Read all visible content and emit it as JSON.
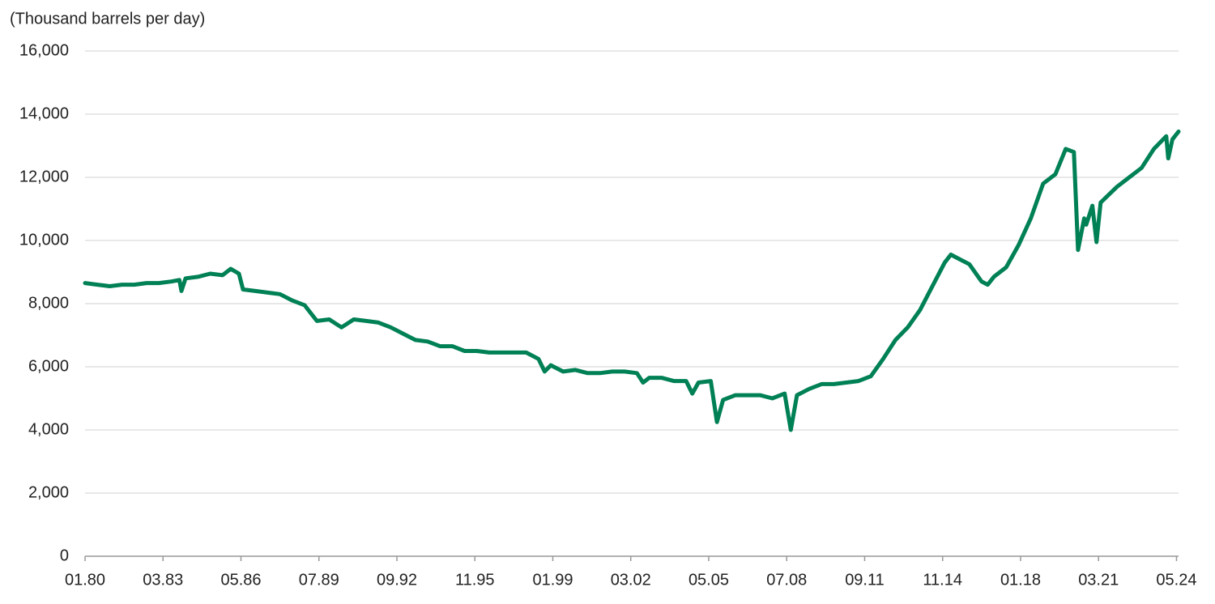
{
  "chart_data": {
    "type": "line",
    "y_label": "(Thousand barrels per day)",
    "x": [
      "01.80",
      "07.80",
      "01.81",
      "07.81",
      "01.82",
      "07.82",
      "01.83",
      "07.83",
      "11.83",
      "12.83",
      "02.84",
      "08.84",
      "02.85",
      "08.85",
      "12.85",
      "04.86",
      "06.86",
      "12.86",
      "06.87",
      "12.87",
      "06.88",
      "12.88",
      "06.89",
      "12.89",
      "06.90",
      "12.90",
      "06.91",
      "12.91",
      "06.92",
      "12.92",
      "06.93",
      "12.93",
      "06.94",
      "12.94",
      "06.95",
      "12.95",
      "06.96",
      "12.96",
      "06.97",
      "12.97",
      "06.98",
      "09.98",
      "12.98",
      "06.99",
      "12.99",
      "06.00",
      "12.00",
      "06.01",
      "12.01",
      "06.02",
      "09.02",
      "12.02",
      "06.03",
      "12.03",
      "06.04",
      "09.04",
      "12.04",
      "06.05",
      "09.05",
      "12.05",
      "06.06",
      "12.06",
      "06.07",
      "12.07",
      "06.08",
      "09.08",
      "12.08",
      "06.09",
      "12.09",
      "06.10",
      "12.10",
      "06.11",
      "12.11",
      "06.12",
      "12.12",
      "06.13",
      "12.13",
      "06.14",
      "12.14",
      "03.15",
      "06.15",
      "12.15",
      "06.16",
      "09.16",
      "12.16",
      "06.17",
      "12.17",
      "06.18",
      "12.18",
      "06.19",
      "11.19",
      "03.20",
      "05.20",
      "08.20",
      "09.20",
      "12.20",
      "02.21",
      "04.21",
      "12.21",
      "06.22",
      "12.22",
      "06.23",
      "12.23",
      "01.24",
      "03.24",
      "06.24"
    ],
    "series": [
      {
        "color": "#008055",
        "values": [
          8650,
          8600,
          8550,
          8600,
          8600,
          8650,
          8650,
          8700,
          8750,
          8400,
          8800,
          8850,
          8950,
          8900,
          9100,
          8950,
          8450,
          8400,
          8350,
          8300,
          8100,
          7950,
          7450,
          7500,
          7250,
          7500,
          7450,
          7400,
          7250,
          7050,
          6850,
          6800,
          6650,
          6650,
          6500,
          6500,
          6450,
          6450,
          6450,
          6450,
          6250,
          5850,
          6050,
          5850,
          5900,
          5800,
          5800,
          5850,
          5850,
          5800,
          5500,
          5650,
          5650,
          5550,
          5550,
          5150,
          5500,
          5550,
          4250,
          4950,
          5100,
          5100,
          5100,
          5000,
          5150,
          4000,
          5100,
          5300,
          5450,
          5450,
          5500,
          5550,
          5700,
          6250,
          6850,
          7250,
          7800,
          8550,
          9300,
          9550,
          9450,
          9250,
          8700,
          8600,
          8850,
          9150,
          9850,
          10700,
          11800,
          12100,
          12900,
          12800,
          9700,
          10700,
          10500,
          11100,
          9950,
          11200,
          11700,
          12000,
          12300,
          12900,
          13300,
          12600,
          13200,
          13450
        ]
      }
    ],
    "xlim": [
      "01.80",
      "06.24"
    ],
    "xticks": [
      "01.80",
      "03.83",
      "05.86",
      "07.89",
      "09.92",
      "11.95",
      "01.99",
      "03.02",
      "05.05",
      "07.08",
      "09.11",
      "11.14",
      "01.18",
      "03.21",
      "05.24"
    ],
    "ylim": [
      0,
      16000
    ],
    "yticks": [
      0,
      {
        "value": 2000,
        "label": "2,000"
      },
      {
        "value": 4000,
        "label": "4,000"
      },
      {
        "value": 6000,
        "label": "6,000"
      },
      {
        "value": 8000,
        "label": "8,000"
      },
      {
        "value": 10000,
        "label": "10,000"
      },
      {
        "value": 12000,
        "label": "12,000"
      },
      {
        "value": 14000,
        "label": "14,000"
      },
      {
        "value": 16000,
        "label": "16,000"
      }
    ],
    "grid": true
  }
}
